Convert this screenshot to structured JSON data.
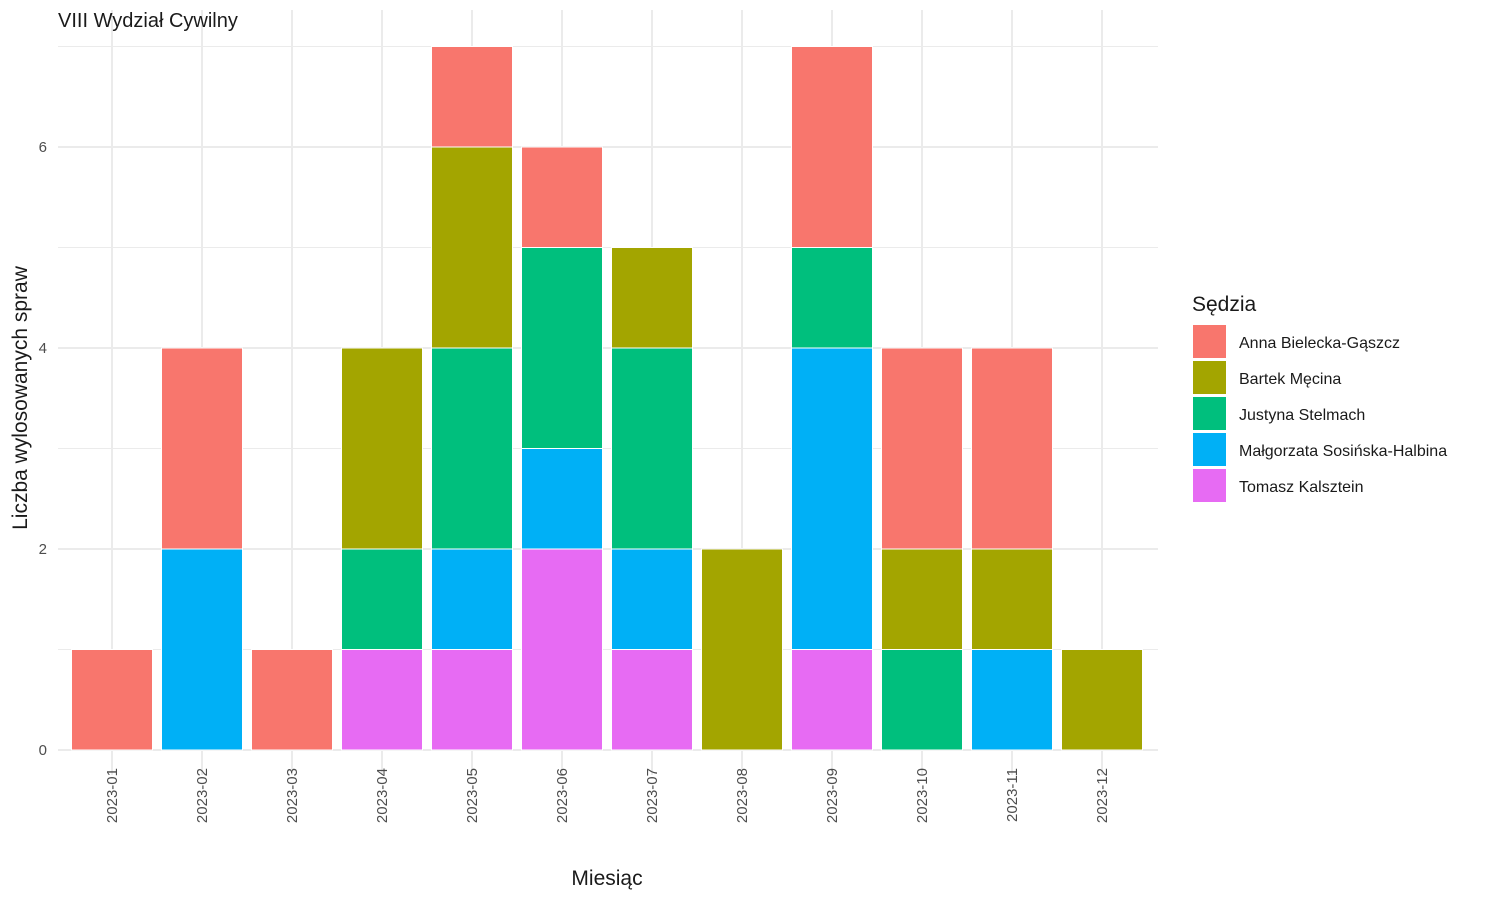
{
  "chart_data": {
    "type": "bar",
    "stacked": true,
    "title": "VIII Wydział Cywilny",
    "xlabel": "Miesiąc",
    "ylabel": "Liczba wylosowanych spraw",
    "ylim": [
      0,
      7
    ],
    "yticks": [
      "0",
      "2",
      "4",
      "6"
    ],
    "grid": true,
    "legend_position": "right",
    "legend_title": "Sędzia",
    "categories": [
      "2023-01",
      "2023-02",
      "2023-03",
      "2023-04",
      "2023-05",
      "2023-06",
      "2023-07",
      "2023-08",
      "2023-09",
      "2023-10",
      "2023-11",
      "2023-12"
    ],
    "series": [
      {
        "name": "Tomasz Kalsztein",
        "color": "#E76BF3",
        "values": [
          0,
          0,
          0,
          1,
          1,
          2,
          1,
          0,
          1,
          0,
          0,
          0
        ]
      },
      {
        "name": "Małgorzata Sosińska-Halbina",
        "color": "#00B0F6",
        "values": [
          0,
          2,
          0,
          0,
          1,
          1,
          1,
          0,
          3,
          0,
          1,
          0
        ]
      },
      {
        "name": "Justyna Stelmach",
        "color": "#00BF7D",
        "values": [
          0,
          0,
          0,
          1,
          2,
          2,
          2,
          0,
          1,
          1,
          0,
          0
        ]
      },
      {
        "name": "Bartek Męcina",
        "color": "#A3A500",
        "values": [
          0,
          0,
          0,
          2,
          2,
          0,
          1,
          2,
          0,
          1,
          1,
          1
        ]
      },
      {
        "name": "Anna Bielecka-Gąszcz",
        "color": "#F8766D",
        "values": [
          1,
          2,
          1,
          0,
          1,
          1,
          0,
          0,
          2,
          2,
          2,
          0
        ]
      }
    ],
    "legend_order": [
      "Anna Bielecka-Gąszcz",
      "Bartek Męcina",
      "Justyna Stelmach",
      "Małgorzata Sosińska-Halbina",
      "Tomasz Kalsztein"
    ]
  }
}
